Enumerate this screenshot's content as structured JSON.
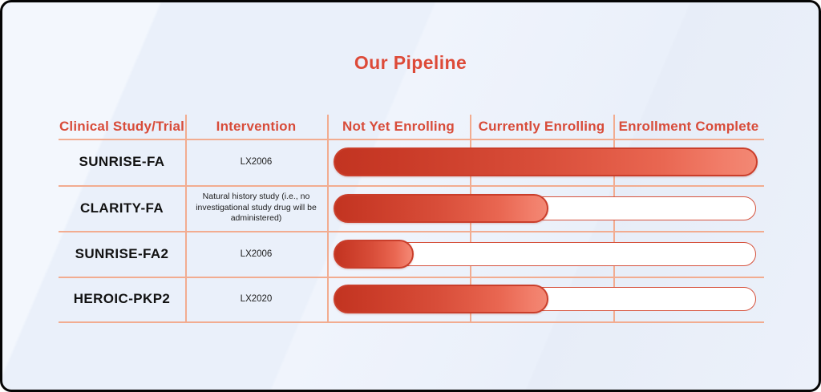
{
  "title": "Our Pipeline",
  "colors": {
    "accent_red": "#dd4a38",
    "grid_line": "#f2ac90",
    "bar_dark": "#c23421",
    "bar_light": "#f38874",
    "bar_border": "#ca3e2b",
    "track_border": "#d6523d",
    "background": "#ecf1fa",
    "frame_border": "#050505",
    "study_text": "#121212"
  },
  "table": {
    "headers": [
      "Clinical Study/Trial",
      "Intervention",
      "Not Yet Enrolling",
      "Currently Enrolling",
      "Enrollment Complete"
    ],
    "rows": [
      {
        "study": "SUNRISE-FA",
        "intervention": "LX2006",
        "progress_pct": 100,
        "status": "Enrollment Complete"
      },
      {
        "study": "CLARITY-FA",
        "intervention": "Natural history study (i.e., no investigational study drug will be administered)",
        "progress_pct": 50,
        "status": "Currently Enrolling"
      },
      {
        "study": "SUNRISE-FA2",
        "intervention": "LX2006",
        "progress_pct": 18,
        "status": "Not Yet Enrolling"
      },
      {
        "study": "HEROIC-PKP2",
        "intervention": "LX2020",
        "progress_pct": 50,
        "status": "Currently Enrolling"
      }
    ]
  },
  "chart_data": {
    "type": "bar",
    "orientation": "horizontal",
    "title": "Our Pipeline",
    "categories": [
      "SUNRISE-FA",
      "CLARITY-FA",
      "SUNRISE-FA2",
      "HEROIC-PKP2"
    ],
    "values": [
      100,
      50,
      18,
      50
    ],
    "xlim": [
      0,
      100
    ],
    "value_meaning": "percent of enrollment pipeline track filled",
    "phase_columns": [
      "Not Yet Enrolling",
      "Currently Enrolling",
      "Enrollment Complete"
    ],
    "interventions": [
      "LX2006",
      "Natural history study (i.e., no investigational study drug will be administered)",
      "LX2006",
      "LX2020"
    ],
    "statuses": [
      "Enrollment Complete",
      "Currently Enrolling",
      "Not Yet Enrolling",
      "Currently Enrolling"
    ],
    "legend_position": "none",
    "grid": "salmon column/row separator lines"
  }
}
